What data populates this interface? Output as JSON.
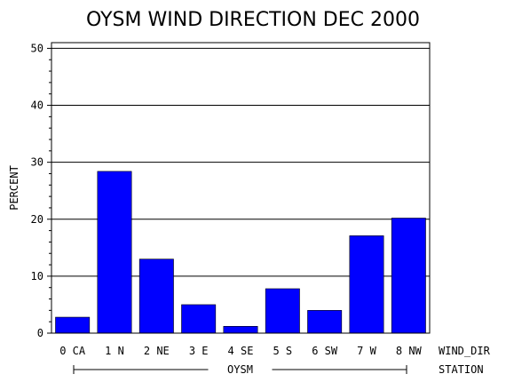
{
  "chart_data": {
    "type": "bar",
    "title": "OYSM WIND DIRECTION DEC 2000",
    "xlabel": "WIND_DIR",
    "ylabel": "PERCENT",
    "group_label": "OYSM",
    "group_axis_label": "STATION",
    "categories": [
      "0 CA",
      "1 N",
      "2 NE",
      "3 E",
      "4 SE",
      "5 S",
      "6 SW",
      "7 W",
      "8 NW"
    ],
    "values": [
      2.8,
      28.4,
      13.0,
      5.0,
      1.2,
      7.8,
      4.0,
      17.1,
      20.2
    ],
    "ylim": [
      0,
      51
    ],
    "yticks": [
      0,
      10,
      20,
      30,
      40,
      50
    ],
    "grid": true,
    "bar_color": "#0000FF"
  }
}
